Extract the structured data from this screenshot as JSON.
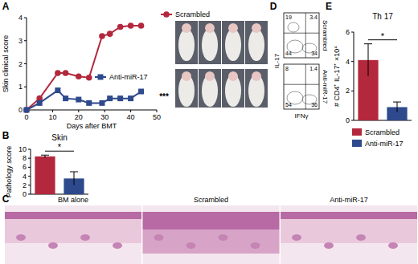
{
  "chart_data": [
    {
      "type": "line",
      "annotations": [
        "A",
        "***"
      ],
      "x_label": "Days after BMT",
      "y_label": "Skin clinical score",
      "x": [
        0,
        5,
        12,
        15,
        20,
        24,
        29,
        32,
        36,
        40,
        44
      ],
      "xlim": [
        0,
        50
      ],
      "xticks": [
        0,
        10,
        20,
        30,
        40,
        50
      ],
      "ylim": [
        0,
        4
      ],
      "yticks": [
        0,
        1,
        2,
        3,
        4
      ],
      "grid": false,
      "series": [
        {
          "name": "Scrambled",
          "color": "#b3283d",
          "marker": "circle",
          "values": [
            0,
            0.5,
            1.6,
            1.6,
            1.45,
            1.4,
            3.2,
            3.3,
            3.6,
            3.65,
            3.65
          ]
        },
        {
          "name": "Anti-miR-17",
          "color": "#2e4a8c",
          "marker": "square",
          "values": [
            0,
            0.3,
            0.85,
            0.5,
            0.45,
            0.3,
            0.3,
            0.5,
            0.5,
            0.5,
            0.8
          ]
        }
      ]
    },
    {
      "type": "bar",
      "title": "Skin",
      "annotations": [
        "B",
        "*"
      ],
      "y_label": "Pathology score",
      "categories": [
        null,
        null
      ],
      "values": [
        8.4,
        3.5
      ],
      "errors": [
        0.3,
        1.5
      ],
      "colors": [
        "#b3283d",
        "#2e4a8c"
      ],
      "ylim": [
        0,
        10
      ],
      "yticks": [
        0,
        2,
        4,
        6,
        8,
        10
      ]
    },
    {
      "type": "bar",
      "title": "Th 17",
      "annotations": [
        "E",
        "*"
      ],
      "y_label": "# CD4⁺ IL-17⁺ ×10⁴",
      "categories": [
        null,
        null
      ],
      "values": [
        4.1,
        0.9
      ],
      "errors": [
        1.1,
        0.35
      ],
      "colors": [
        "#b3283d",
        "#2e4a8c"
      ],
      "legend_labels": [
        "Scrambled",
        "Anti-miR-17"
      ],
      "legend": "bottom",
      "ylim": [
        0,
        6
      ],
      "yticks": [
        0,
        2,
        4,
        6
      ]
    }
  ],
  "histology": {
    "label": "C",
    "panels": [
      "BM alone",
      "Scrambled",
      "Anti-miR-17"
    ]
  },
  "flow": {
    "label": "D",
    "x_label": "IFNγ",
    "y_label": "IL-17",
    "plots": [
      {
        "name": "Scrambled",
        "quadrants": [
          19,
          3.4,
          44,
          34
        ]
      },
      {
        "name": "Anti-miR-17",
        "quadrants": [
          8,
          1.4,
          54,
          36
        ]
      }
    ]
  }
}
